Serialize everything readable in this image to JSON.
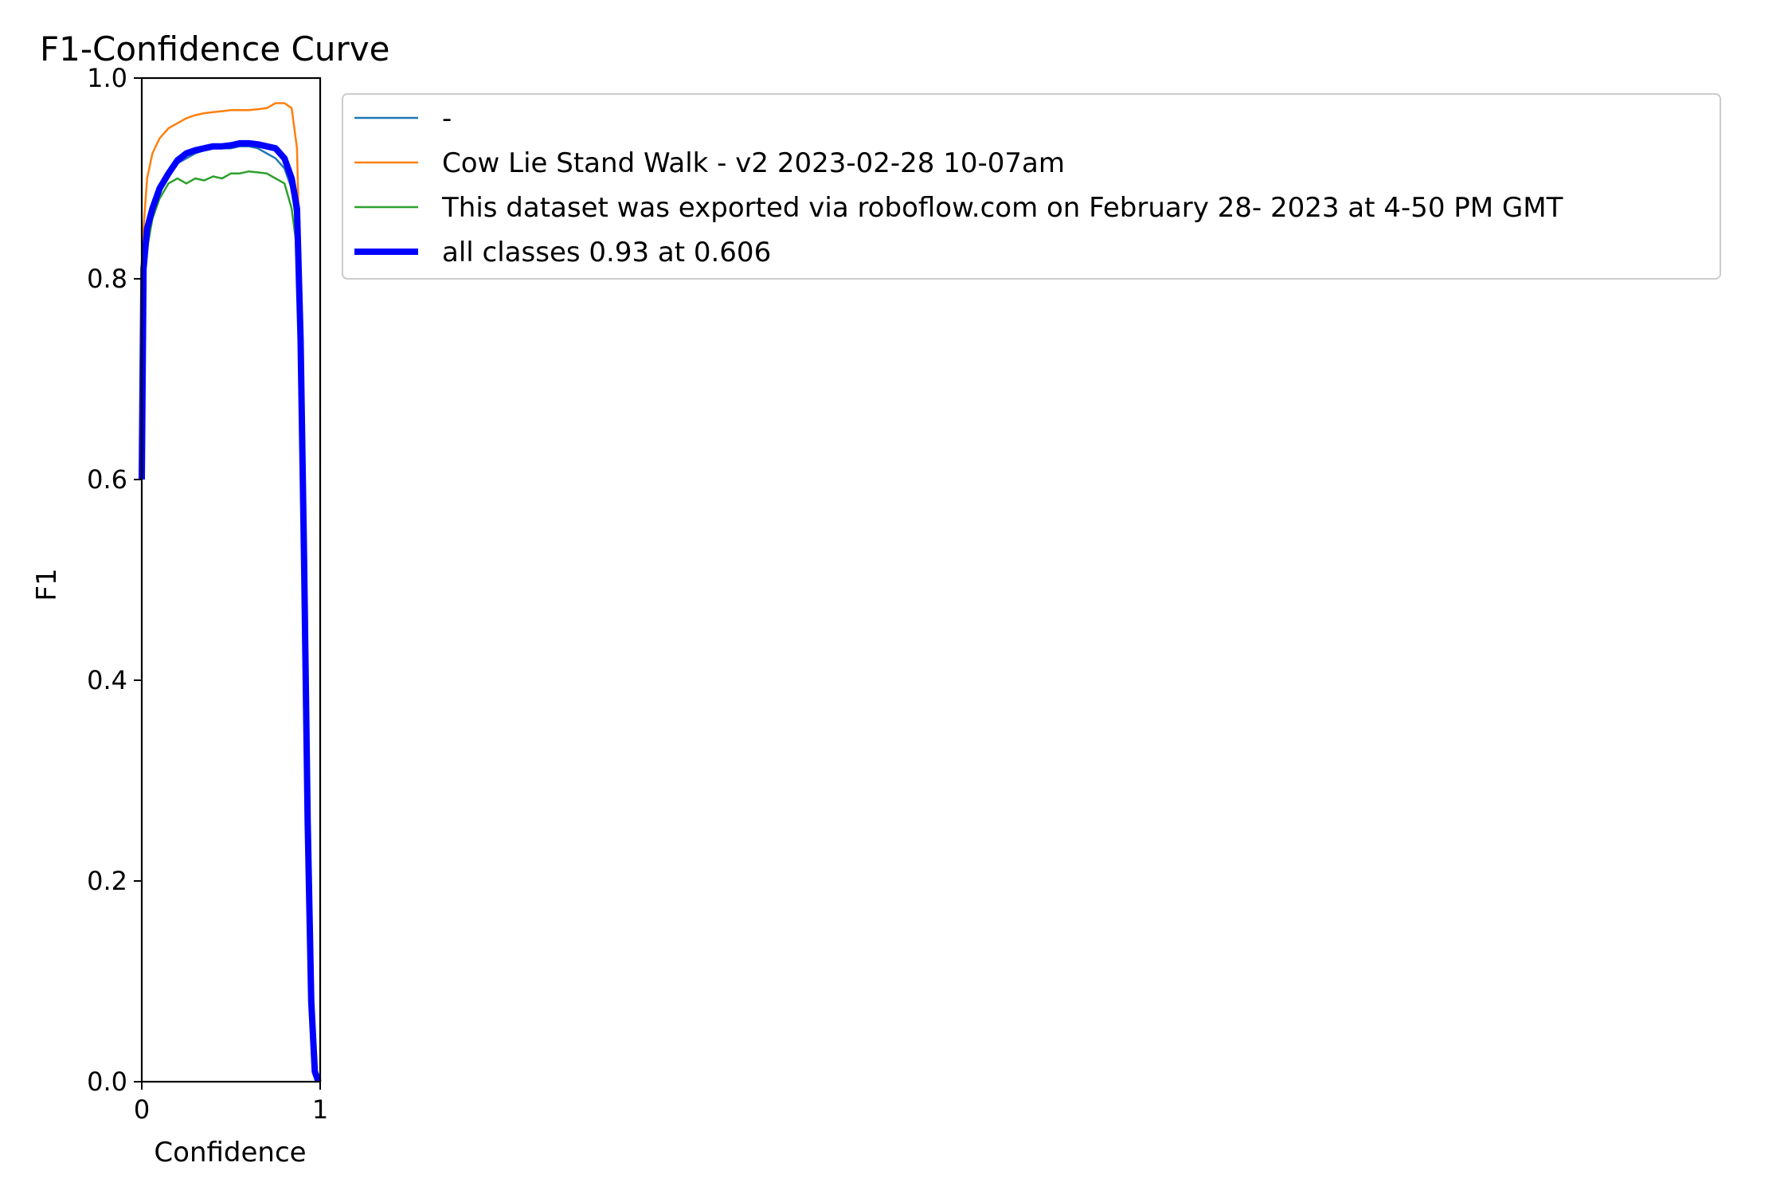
{
  "chart_data": {
    "type": "line",
    "title": "F1-Confidence Curve",
    "xlabel": "Confidence",
    "ylabel": "F1",
    "xlim": [
      0,
      1
    ],
    "ylim": [
      0,
      1
    ],
    "x_ticks": [
      0,
      1
    ],
    "x_tick_labels": [
      "0",
      "1"
    ],
    "y_ticks": [
      0,
      0.2,
      0.4,
      0.6,
      0.8,
      1.0
    ],
    "y_tick_labels": [
      "0.0",
      "0.2",
      "0.4",
      "0.6",
      "0.8",
      "1.0"
    ],
    "grid": false,
    "legend_position": "outside-right-top",
    "series": [
      {
        "name": "-",
        "color": "#1f77b4",
        "x": [
          0.0,
          0.01,
          0.03,
          0.06,
          0.1,
          0.15,
          0.2,
          0.25,
          0.3,
          0.35,
          0.4,
          0.45,
          0.5,
          0.55,
          0.6,
          0.65,
          0.7,
          0.75,
          0.8,
          0.84,
          0.87,
          0.89,
          0.91,
          0.93,
          0.95,
          0.97,
          0.99
        ],
        "y": [
          0.6,
          0.8,
          0.84,
          0.87,
          0.89,
          0.905,
          0.915,
          0.92,
          0.925,
          0.928,
          0.93,
          0.93,
          0.93,
          0.932,
          0.932,
          0.93,
          0.925,
          0.92,
          0.91,
          0.89,
          0.85,
          0.72,
          0.5,
          0.25,
          0.08,
          0.01,
          0.0
        ]
      },
      {
        "name": "Cow Lie Stand Walk - v2 2023-02-28 10-07am",
        "color": "#ff7f0e",
        "x": [
          0.0,
          0.01,
          0.03,
          0.06,
          0.1,
          0.15,
          0.2,
          0.25,
          0.3,
          0.35,
          0.4,
          0.45,
          0.5,
          0.55,
          0.6,
          0.65,
          0.7,
          0.75,
          0.8,
          0.84,
          0.87,
          0.89,
          0.91,
          0.93,
          0.95,
          0.97,
          0.99
        ],
        "y": [
          0.6,
          0.85,
          0.9,
          0.925,
          0.94,
          0.95,
          0.955,
          0.96,
          0.963,
          0.965,
          0.966,
          0.967,
          0.968,
          0.968,
          0.968,
          0.969,
          0.97,
          0.975,
          0.975,
          0.97,
          0.93,
          0.78,
          0.55,
          0.28,
          0.09,
          0.01,
          0.0
        ]
      },
      {
        "name": "This dataset was exported via roboflow.com on February 28- 2023 at 4-50 PM GMT",
        "color": "#2ca02c",
        "x": [
          0.0,
          0.01,
          0.03,
          0.06,
          0.1,
          0.15,
          0.2,
          0.25,
          0.3,
          0.35,
          0.4,
          0.45,
          0.5,
          0.55,
          0.6,
          0.65,
          0.7,
          0.75,
          0.8,
          0.84,
          0.87,
          0.89,
          0.91,
          0.93,
          0.95,
          0.97,
          0.99
        ],
        "y": [
          0.6,
          0.8,
          0.83,
          0.86,
          0.88,
          0.895,
          0.9,
          0.895,
          0.9,
          0.898,
          0.902,
          0.9,
          0.905,
          0.905,
          0.907,
          0.906,
          0.905,
          0.9,
          0.895,
          0.87,
          0.83,
          0.7,
          0.48,
          0.24,
          0.08,
          0.01,
          0.0
        ]
      },
      {
        "name": "all classes 0.93 at 0.606",
        "color": "#0000ff",
        "bold": true,
        "x": [
          0.0,
          0.01,
          0.03,
          0.06,
          0.1,
          0.15,
          0.2,
          0.25,
          0.3,
          0.35,
          0.4,
          0.45,
          0.5,
          0.55,
          0.6,
          0.65,
          0.7,
          0.75,
          0.8,
          0.84,
          0.87,
          0.89,
          0.91,
          0.93,
          0.95,
          0.97,
          0.99
        ],
        "y": [
          0.6,
          0.81,
          0.85,
          0.87,
          0.89,
          0.905,
          0.918,
          0.925,
          0.928,
          0.93,
          0.932,
          0.932,
          0.933,
          0.935,
          0.935,
          0.934,
          0.932,
          0.93,
          0.92,
          0.9,
          0.87,
          0.74,
          0.52,
          0.26,
          0.08,
          0.01,
          0.0
        ]
      }
    ]
  }
}
